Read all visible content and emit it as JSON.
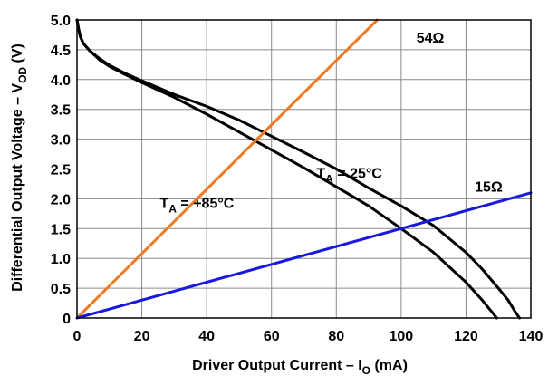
{
  "chart_data": {
    "type": "line",
    "title": "",
    "xlabel": "Driver Output Current – I",
    "xlabel_sub": "O",
    "xlabel_unit": " (mA)",
    "ylabel": "Differential Output Voltage – V",
    "ylabel_sub": "OD",
    "ylabel_unit": " (V)",
    "xlim": [
      0,
      140
    ],
    "ylim": [
      0,
      5.0
    ],
    "x_ticks": [
      0,
      20,
      40,
      60,
      80,
      100,
      120,
      140
    ],
    "x_tick_labels": [
      "0",
      "20",
      "40",
      "60",
      "80",
      "100",
      "120",
      "140"
    ],
    "y_ticks": [
      0,
      0.5,
      1.0,
      1.5,
      2.0,
      2.5,
      3.0,
      3.5,
      4.0,
      4.5,
      5.0
    ],
    "y_tick_labels": [
      "0",
      "0.5",
      "1.0",
      "1.5",
      "2.0",
      "2.5",
      "3.0",
      "3.5",
      "4.0",
      "4.5",
      "5.0"
    ],
    "grid": true,
    "series": [
      {
        "name": "T_A = 25°C",
        "label_main": "T",
        "label_sub": "A",
        "label_rest": " = 25°C",
        "label_at": [
          84,
          2.35
        ],
        "color": "#000000",
        "x": [
          0,
          0.5,
          1,
          2,
          4,
          7,
          10,
          15,
          20,
          30,
          40,
          50,
          60,
          70,
          80,
          90,
          100,
          110,
          120,
          125,
          130,
          133,
          135,
          136.5
        ],
        "y": [
          5.0,
          4.85,
          4.72,
          4.6,
          4.48,
          4.35,
          4.24,
          4.1,
          3.98,
          3.75,
          3.55,
          3.32,
          3.05,
          2.78,
          2.5,
          2.18,
          1.88,
          1.55,
          1.1,
          0.82,
          0.5,
          0.3,
          0.12,
          0
        ]
      },
      {
        "name": "T_A = +85°C",
        "label_main": "T",
        "label_sub": "A",
        "label_rest": " = +85°C",
        "label_at": [
          37,
          1.85
        ],
        "color": "#000000",
        "x": [
          0,
          0.5,
          1,
          2,
          4,
          7,
          10,
          15,
          20,
          30,
          40,
          50,
          60,
          70,
          80,
          90,
          100,
          110,
          120,
          125,
          128,
          129.5
        ],
        "y": [
          5.0,
          4.85,
          4.72,
          4.6,
          4.48,
          4.33,
          4.22,
          4.08,
          3.95,
          3.7,
          3.42,
          3.12,
          2.82,
          2.52,
          2.2,
          1.88,
          1.5,
          1.1,
          0.6,
          0.3,
          0.1,
          0
        ]
      },
      {
        "name": "54Ω",
        "label_main": "54Ω",
        "label_at": [
          109,
          4.62
        ],
        "color": "#f07921",
        "x": [
          0,
          92.6
        ],
        "y": [
          0,
          5.0
        ]
      },
      {
        "name": "15Ω",
        "label_main": "15Ω",
        "label_at": [
          127,
          2.12
        ],
        "color": "#1818e0",
        "x": [
          0,
          140
        ],
        "y": [
          0,
          2.1
        ]
      }
    ]
  }
}
